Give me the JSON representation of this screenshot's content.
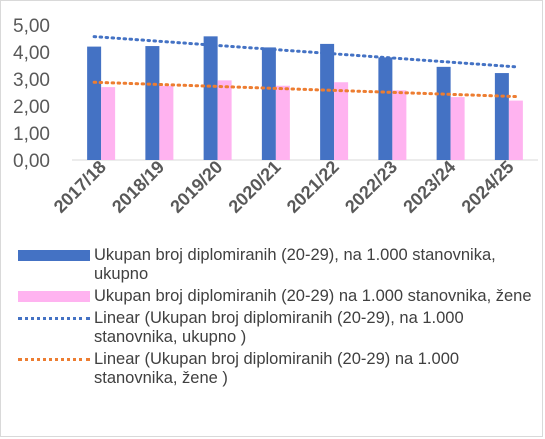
{
  "chart_data": {
    "type": "bar",
    "categories": [
      "2017/18",
      "2018/19",
      "2019/20",
      "2020/21",
      "2021/22",
      "2022/23",
      "2023/24",
      "2024/25"
    ],
    "series": [
      {
        "name": "Ukupan broj diplomiranih (20-29), na 1.000 stanovnika, ukupno",
        "kind": "bar",
        "color": "#4472c4",
        "values": [
          4.2,
          4.22,
          4.58,
          4.17,
          4.3,
          3.8,
          3.45,
          3.22
        ]
      },
      {
        "name": "Ukupan broj diplomiranih (20-29) na 1.000 stanovnika, žene",
        "kind": "bar",
        "color": "#ffb3f0",
        "values": [
          2.7,
          2.75,
          2.95,
          2.75,
          2.88,
          2.58,
          2.33,
          2.2
        ]
      },
      {
        "name": "Linear (Ukupan broj diplomiranih (20-29), na 1.000 stanovnika, ukupno )",
        "kind": "trendline",
        "color": "#4472c4",
        "values": [
          4.57,
          4.4,
          4.25,
          4.1,
          3.95,
          3.8,
          3.62,
          3.45
        ]
      },
      {
        "name": "Linear (Ukupan broj diplomiranih (20-29) na 1.000 stanovnika, žene )",
        "kind": "trendline",
        "color": "#ed7d31",
        "values": [
          2.88,
          2.8,
          2.72,
          2.65,
          2.57,
          2.5,
          2.42,
          2.35
        ]
      }
    ],
    "yticks": [
      "0,00",
      "1,00",
      "2,00",
      "3,00",
      "4,00",
      "5,00"
    ],
    "ylim": [
      0,
      5
    ],
    "grid": false,
    "legend_position": "bottom"
  }
}
